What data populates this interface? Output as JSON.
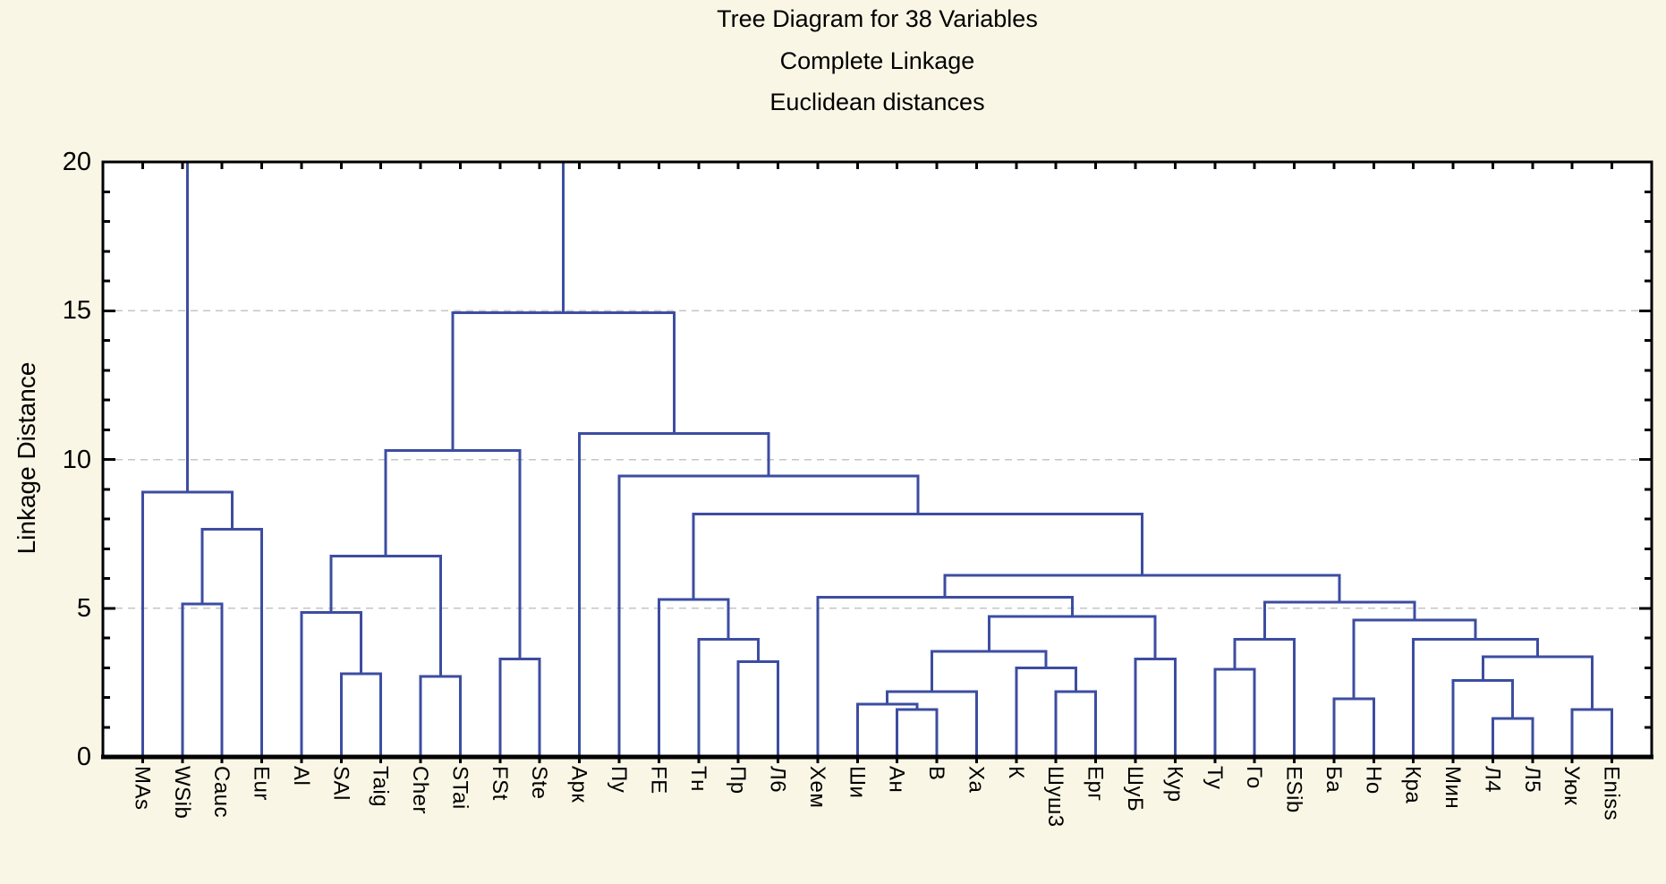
{
  "title": {
    "main": "Tree Diagram for 38  Variables",
    "sub": "Complete Linkage",
    "sub2": "Euclidean distances"
  },
  "y_axis": {
    "label": "Linkage Distance",
    "ticks": [
      0,
      5,
      10,
      15,
      20
    ],
    "minor_step": 1,
    "gridlines_at": [
      5,
      10,
      15
    ],
    "range": [
      0,
      20
    ]
  },
  "chart_data": {
    "type": "dendrogram",
    "title": "Tree Diagram for 38  Variables",
    "subtitle": "Complete Linkage",
    "distance_metric": "Euclidean distances",
    "ylabel": "Linkage Distance",
    "ylim": [
      0,
      20
    ],
    "grid": "dashed horizontal at 5,10,15",
    "legend_position": "none",
    "leaves": [
      "MAs",
      "WSib",
      "Cauc",
      "Eur",
      "Al",
      "SAl",
      "Taig",
      "Cher",
      "STai",
      "FSt",
      "Ste",
      "Арк",
      "Пу",
      "FE",
      "Тн",
      "Пр",
      "Л6",
      "Хем",
      "Ши",
      "Ан",
      "В",
      "Ха",
      "К",
      "Шуш3",
      "Ерг",
      "ШуБ",
      "Кур",
      "Ту",
      "Го",
      "ESib",
      "Ба",
      "Но",
      "Кра",
      "Мин",
      "Л4",
      "Л5",
      "Уюк",
      "Eniss"
    ],
    "merges": [
      {
        "a": "L1",
        "b": "L2",
        "h": 5.15
      },
      {
        "a": "M0",
        "b": "L3",
        "h": 7.65
      },
      {
        "a": "L0",
        "b": "M1",
        "h": 8.9
      },
      {
        "a": "L5",
        "b": "L6",
        "h": 2.8
      },
      {
        "a": "L4",
        "b": "M3",
        "h": 4.85
      },
      {
        "a": "L7",
        "b": "L8",
        "h": 2.7
      },
      {
        "a": "M4",
        "b": "M5",
        "h": 6.75
      },
      {
        "a": "L9",
        "b": "L10",
        "h": 3.3
      },
      {
        "a": "M6",
        "b": "M7",
        "h": 10.3
      },
      {
        "a": "L15",
        "b": "L16",
        "h": 3.2
      },
      {
        "a": "L14",
        "b": "M9",
        "h": 3.95
      },
      {
        "a": "L13",
        "b": "M10",
        "h": 5.3
      },
      {
        "a": "L19",
        "b": "L20",
        "h": 1.6
      },
      {
        "a": "L18",
        "b": "M12",
        "h": 1.78
      },
      {
        "a": "M13",
        "b": "L21",
        "h": 2.2
      },
      {
        "a": "L23",
        "b": "L24",
        "h": 2.2
      },
      {
        "a": "L22",
        "b": "M15",
        "h": 3.0
      },
      {
        "a": "M14",
        "b": "M16",
        "h": 3.55
      },
      {
        "a": "L25",
        "b": "L26",
        "h": 3.3
      },
      {
        "a": "M17",
        "b": "M18",
        "h": 4.72
      },
      {
        "a": "L17",
        "b": "M19",
        "h": 5.37
      },
      {
        "a": "L27",
        "b": "L28",
        "h": 2.95
      },
      {
        "a": "M21",
        "b": "L29",
        "h": 3.95
      },
      {
        "a": "L30",
        "b": "L31",
        "h": 1.95
      },
      {
        "a": "L34",
        "b": "L35",
        "h": 1.3
      },
      {
        "a": "L33",
        "b": "M24",
        "h": 2.57
      },
      {
        "a": "L36",
        "b": "L37",
        "h": 1.6
      },
      {
        "a": "M25",
        "b": "M26",
        "h": 3.37
      },
      {
        "a": "L32",
        "b": "M27",
        "h": 3.95
      },
      {
        "a": "M23",
        "b": "M28",
        "h": 4.6
      },
      {
        "a": "M22",
        "b": "M29",
        "h": 5.2
      },
      {
        "a": "M20",
        "b": "M30",
        "h": 6.1
      },
      {
        "a": "M11",
        "b": "M31",
        "h": 8.16
      },
      {
        "a": "L12",
        "b": "M32",
        "h": 9.45
      },
      {
        "a": "L11",
        "b": "M33",
        "h": 10.87
      },
      {
        "a": "M8",
        "b": "M34",
        "h": 14.93
      }
    ],
    "clipped_roots": [
      "M2",
      "M35"
    ],
    "colors": {
      "line": "#3c4da1",
      "frame": "#000000",
      "grid": "#c5c5c5",
      "background": "#faf6e6",
      "plot_background": "#ffffff"
    }
  }
}
